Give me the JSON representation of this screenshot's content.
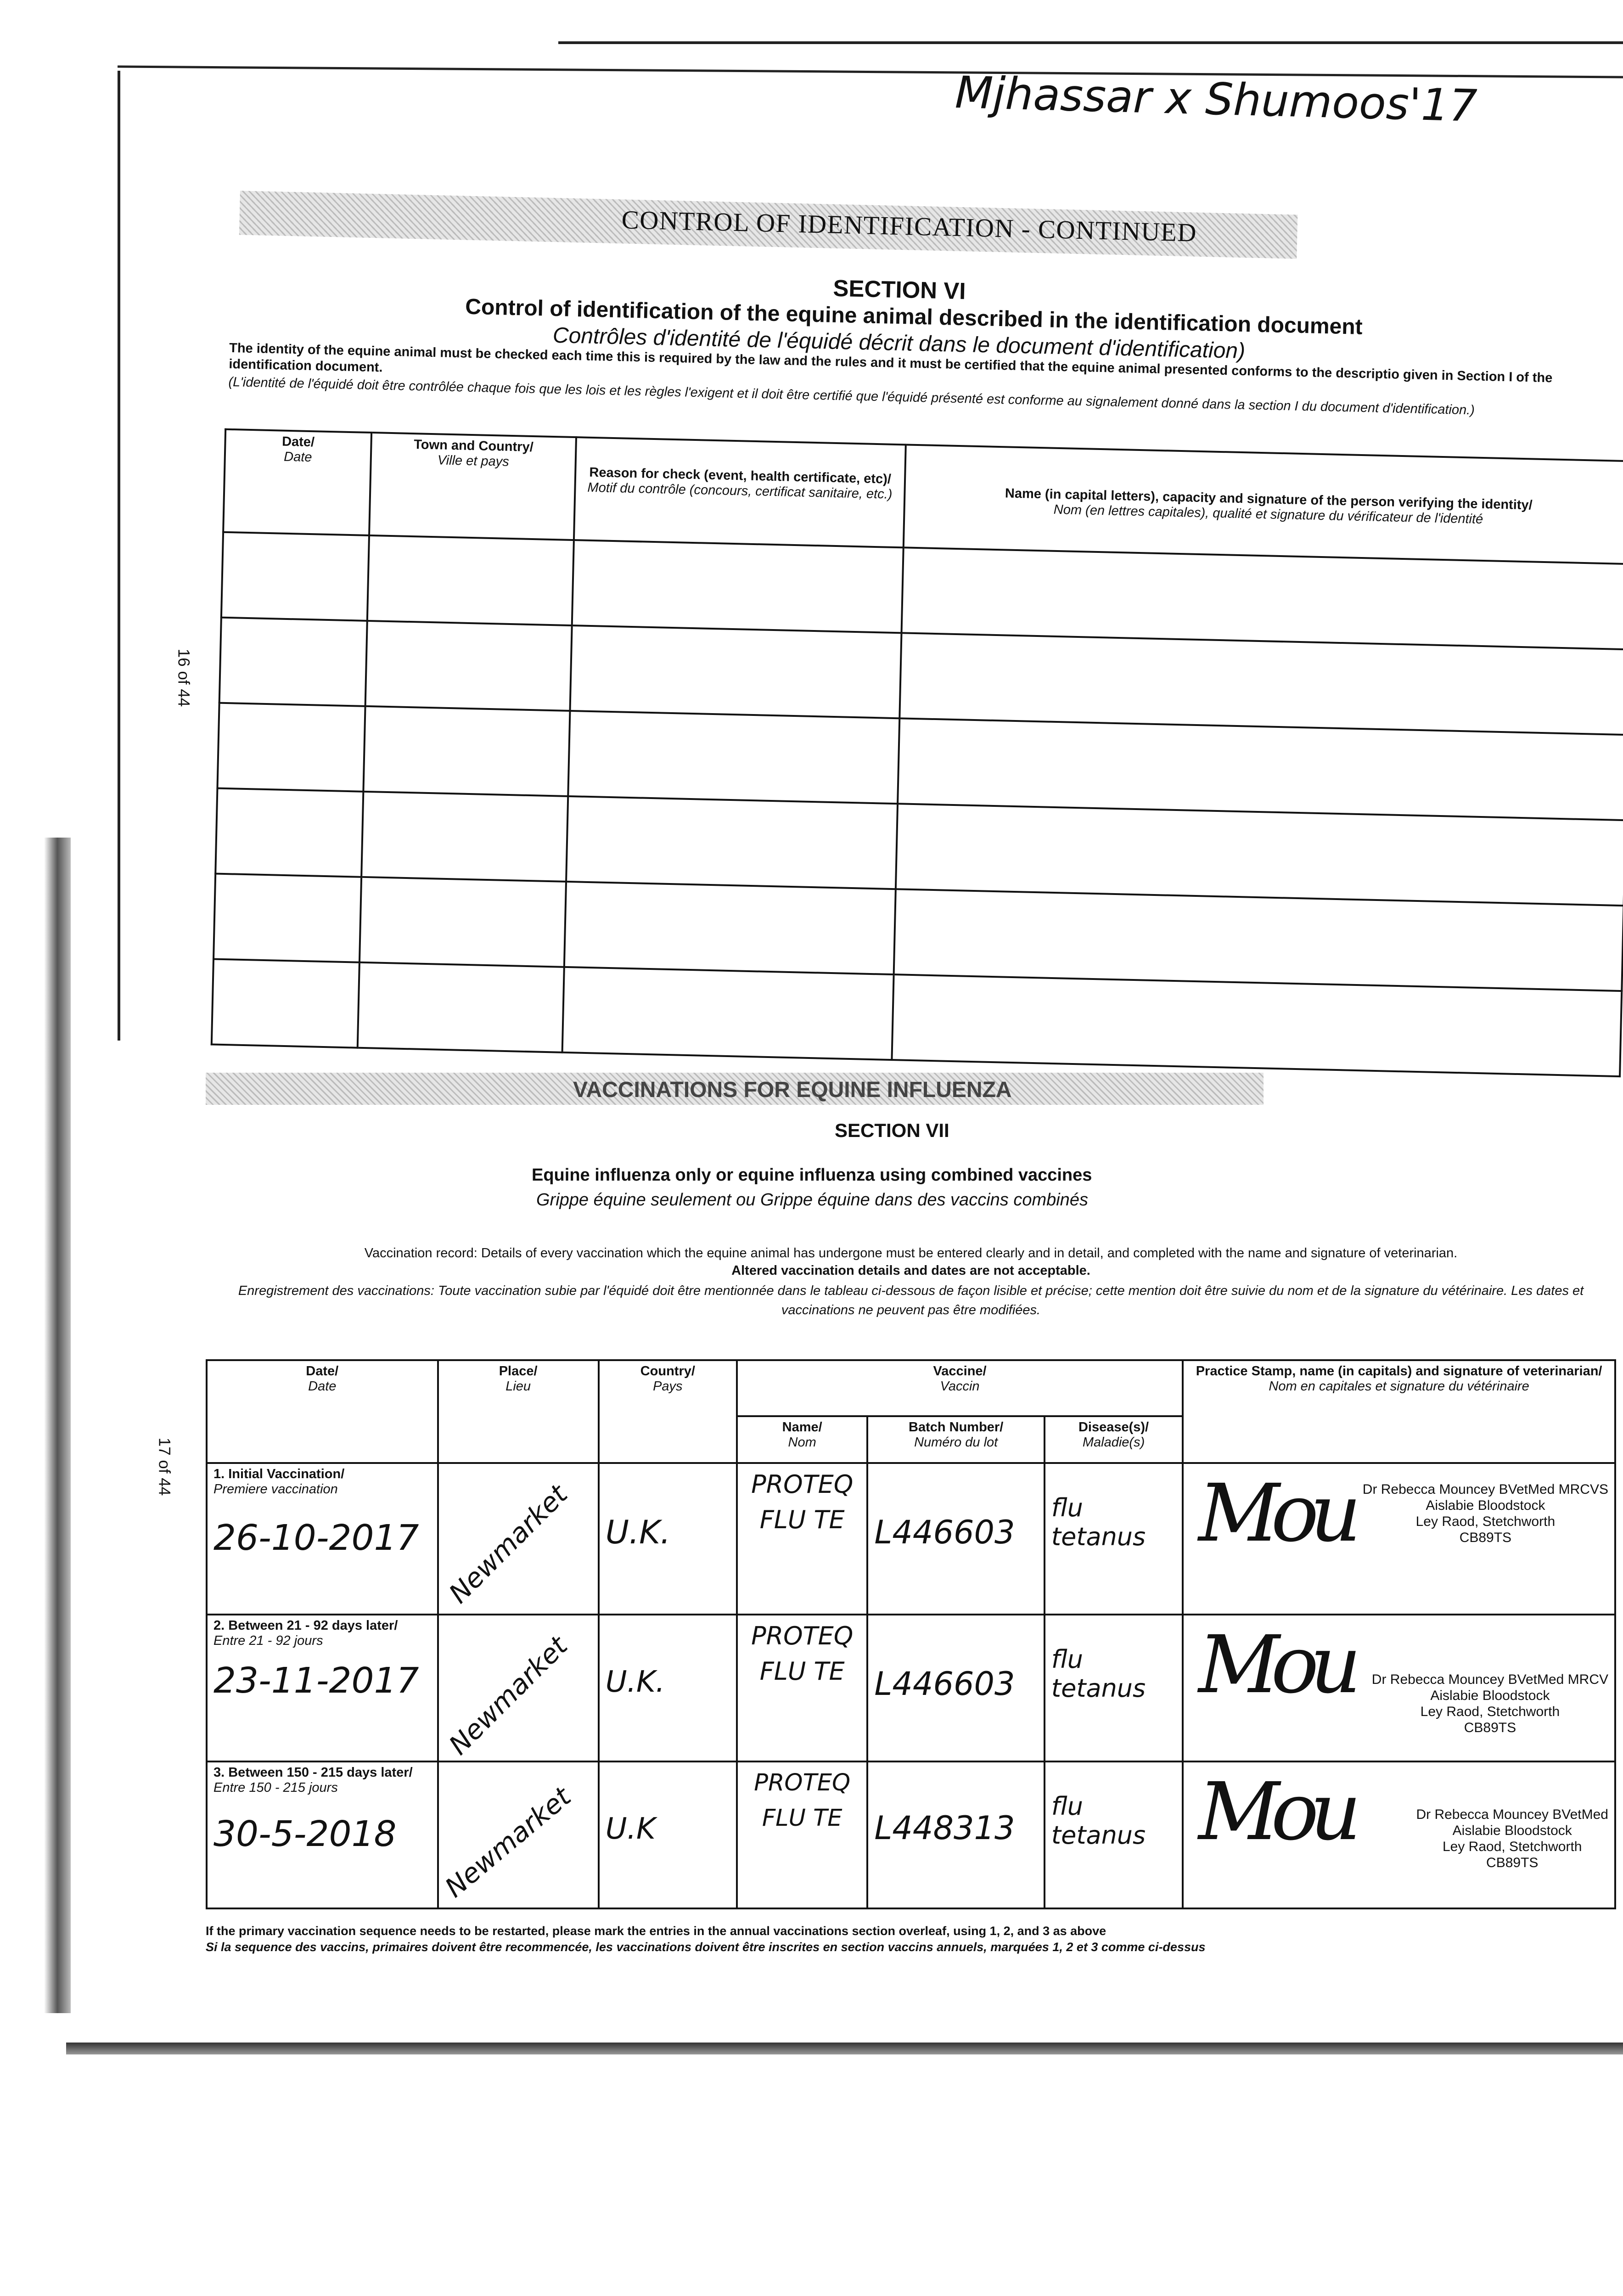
{
  "header_handwriting": "Mjhassar x Shumoos'17",
  "section6": {
    "banner": "CONTROL OF IDENTIFICATION - CONTINUED",
    "section": "SECTION VI",
    "title_en": "Control of identification of the equine animal described in the identification document",
    "title_fr": "Contrôles d'identité de l'équidé décrit dans le document d'identification)",
    "intro_en": "The identity of the equine animal must be checked each time this is required by the law and the rules and it must be certified that the equine animal presented conforms to the descriptio given in Section I of the identification document.",
    "intro_fr": "(L'identité de l'équidé doit être contrôlée chaque fois que les lois et les règles l'exigent et il doit être certifié que l'équidé présenté est conforme au signalement donné dans la section I du document d'identification.)",
    "page_number": "16 of 44",
    "columns": [
      {
        "en": "Date/",
        "fr": "Date"
      },
      {
        "en": "Town and Country/",
        "fr": "Ville et pays"
      },
      {
        "en": "Reason for check (event, health certificate, etc)/",
        "fr": "Motif du contrôle (concours, certificat sanitaire, etc.)"
      },
      {
        "en": "Name (in capital letters), capacity and signature of the person verifying the identity/",
        "fr": "Nom (en lettres capitales), qualité et signature du vérificateur de l'identité"
      }
    ],
    "empty_rows": 6
  },
  "section7": {
    "banner": "VACCINATIONS FOR EQUINE INFLUENZA",
    "section": "SECTION VII",
    "title_en": "Equine influenza only or equine influenza using combined vaccines",
    "title_fr": "Grippe équine seulement ou Grippe équine dans des vaccins combinés",
    "record_en": "Vaccination record: Details of every vaccination which the equine animal has undergone must be entered clearly and in detail, and completed with the name and signature of veterinarian.",
    "record_en2": "Altered vaccination details and dates are not acceptable.",
    "record_fr": "Enregistrement des vaccinations: Toute vaccination subie par l'équidé doit être mentionnée dans le tableau ci-dessous de façon lisible et précise; cette mention doit être suivie du nom et de la signature du vétérinaire. Les dates et vaccinations ne peuvent pas être modifiées.",
    "page_number": "17 of 44",
    "headers": {
      "date": {
        "en": "Date/",
        "fr": "Date"
      },
      "place": {
        "en": "Place/",
        "fr": "Lieu"
      },
      "country": {
        "en": "Country/",
        "fr": "Pays"
      },
      "vaccine": {
        "en": "Vaccine/",
        "fr": "Vaccin"
      },
      "name": {
        "en": "Name/",
        "fr": "Nom"
      },
      "batch": {
        "en": "Batch Number/",
        "fr": "Numéro du lot"
      },
      "disease": {
        "en": "Disease(s)/",
        "fr": "Maladie(s)"
      },
      "stamp": {
        "en": "Practice Stamp, name (in capitals) and signature of veterinarian/",
        "fr": "Nom en capitales et signature du vétérinaire"
      }
    },
    "rows": [
      {
        "label_en": "1. Initial Vaccination/",
        "label_fr": "Premiere vaccination",
        "date": "26-10-2017",
        "place": "Newmarket",
        "country": "U.K.",
        "name": "PROTEQ FLU TE",
        "batch": "L446603",
        "disease": "flu tetanus",
        "signature": "Mou",
        "stamp": [
          "Dr Rebecca Mouncey BVetMed MRCVS",
          "Aislabie Bloodstock",
          "Ley Raod, Stetchworth",
          "CB89TS"
        ]
      },
      {
        "label_en": "2. Between 21 - 92 days later/",
        "label_fr": "Entre 21 - 92 jours",
        "date": "23-11-2017",
        "place": "Newmarket",
        "country": "U.K.",
        "name": "PROTEQ FLU TE",
        "batch": "L446603",
        "disease": "flu tetanus",
        "signature": "Mou",
        "stamp": [
          "Dr Rebecca Mouncey BVetMed MRCV",
          "Aislabie Bloodstock",
          "Ley Raod, Stetchworth",
          "CB89TS"
        ]
      },
      {
        "label_en": "3. Between 150 - 215 days later/",
        "label_fr": "Entre 150 - 215 jours",
        "date": "30-5-2018",
        "place": "Newmarket",
        "country": "U.K",
        "name": "PROTEQ FLU TE",
        "batch": "L448313",
        "disease": "flu tetanus",
        "signature": "Mou",
        "stamp": [
          "Dr Rebecca Mouncey BVetMed",
          "Aislabie Bloodstock",
          "Ley Raod, Stetchworth",
          "CB89TS"
        ]
      }
    ],
    "footnote_en": "If the primary vaccination sequence needs to be restarted, please mark the entries in the annual vaccinations section overleaf, using 1, 2, and 3 as above",
    "footnote_fr": "Si la sequence des vaccins, primaires doivent être recommencée, les vaccinations doivent être inscrites en section vaccins annuels, marquées 1, 2 et 3 comme ci-dessus"
  }
}
